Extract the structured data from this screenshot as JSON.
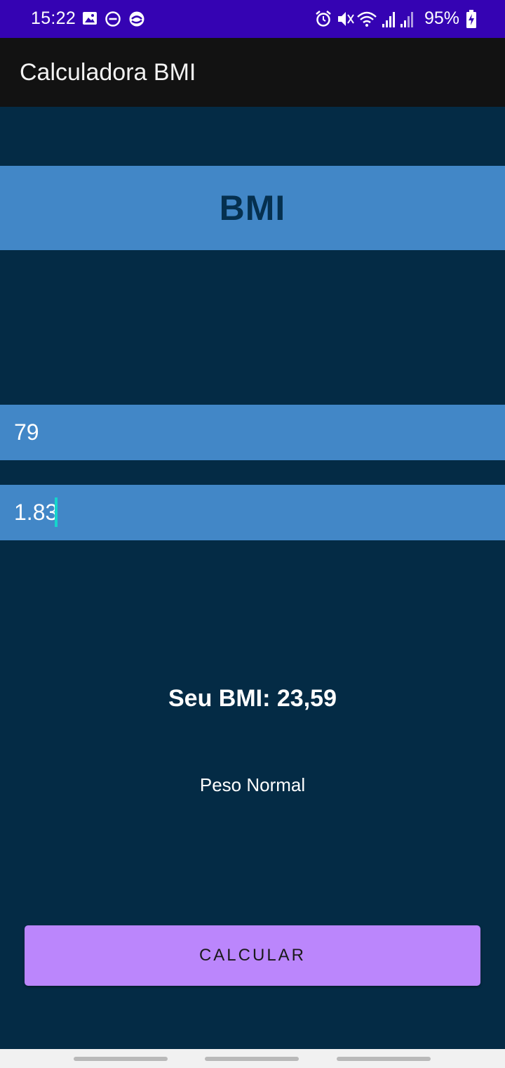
{
  "status_bar": {
    "time": "15:22",
    "battery_percent": "95%",
    "left_icons": [
      "gallery-icon",
      "do-not-disturb-icon",
      "sync-app-icon"
    ],
    "right_icons": [
      "alarm-icon",
      "mute-icon",
      "wifi-icon",
      "signal-icon",
      "signal-icon",
      "battery-charging-icon"
    ]
  },
  "app_bar": {
    "title": "Calculadora BMI"
  },
  "header": {
    "title": "BMI"
  },
  "inputs": {
    "weight": {
      "value": "79"
    },
    "height": {
      "value": "1.83"
    }
  },
  "result": {
    "value_text": "Seu BMI: 23,59",
    "category": "Peso Normal"
  },
  "button": {
    "label": "CALCULAR"
  },
  "colors": {
    "status_bar": "#3503b3",
    "app_bar": "#121212",
    "background": "#042b45",
    "band": "#4287c7",
    "header_text": "#05304f",
    "button": "#bb86fc",
    "cursor": "#14d6cc"
  }
}
